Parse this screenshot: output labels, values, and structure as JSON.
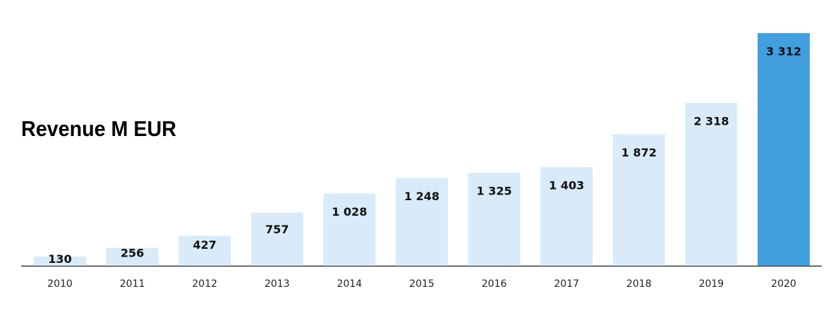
{
  "chart_data": {
    "type": "bar",
    "title": "Revenue M EUR",
    "categories": [
      "2010",
      "2011",
      "2012",
      "2013",
      "2014",
      "2015",
      "2016",
      "2017",
      "2018",
      "2019",
      "2020"
    ],
    "values": [
      130,
      256,
      427,
      757,
      1028,
      1248,
      1325,
      1403,
      1872,
      2318,
      3312
    ],
    "value_labels": [
      "130",
      "256",
      "427",
      "757",
      "1 028",
      "1 248",
      "1 325",
      "1 403",
      "1 872",
      "2 318",
      "3 312"
    ],
    "colors": [
      "#d9ebf9",
      "#d9ebf9",
      "#d9ebf9",
      "#d9ebf9",
      "#d9ebf9",
      "#d9ebf9",
      "#d9ebf9",
      "#d9ebf9",
      "#d9ebf9",
      "#d9ebf9",
      "#429fdf"
    ]
  }
}
